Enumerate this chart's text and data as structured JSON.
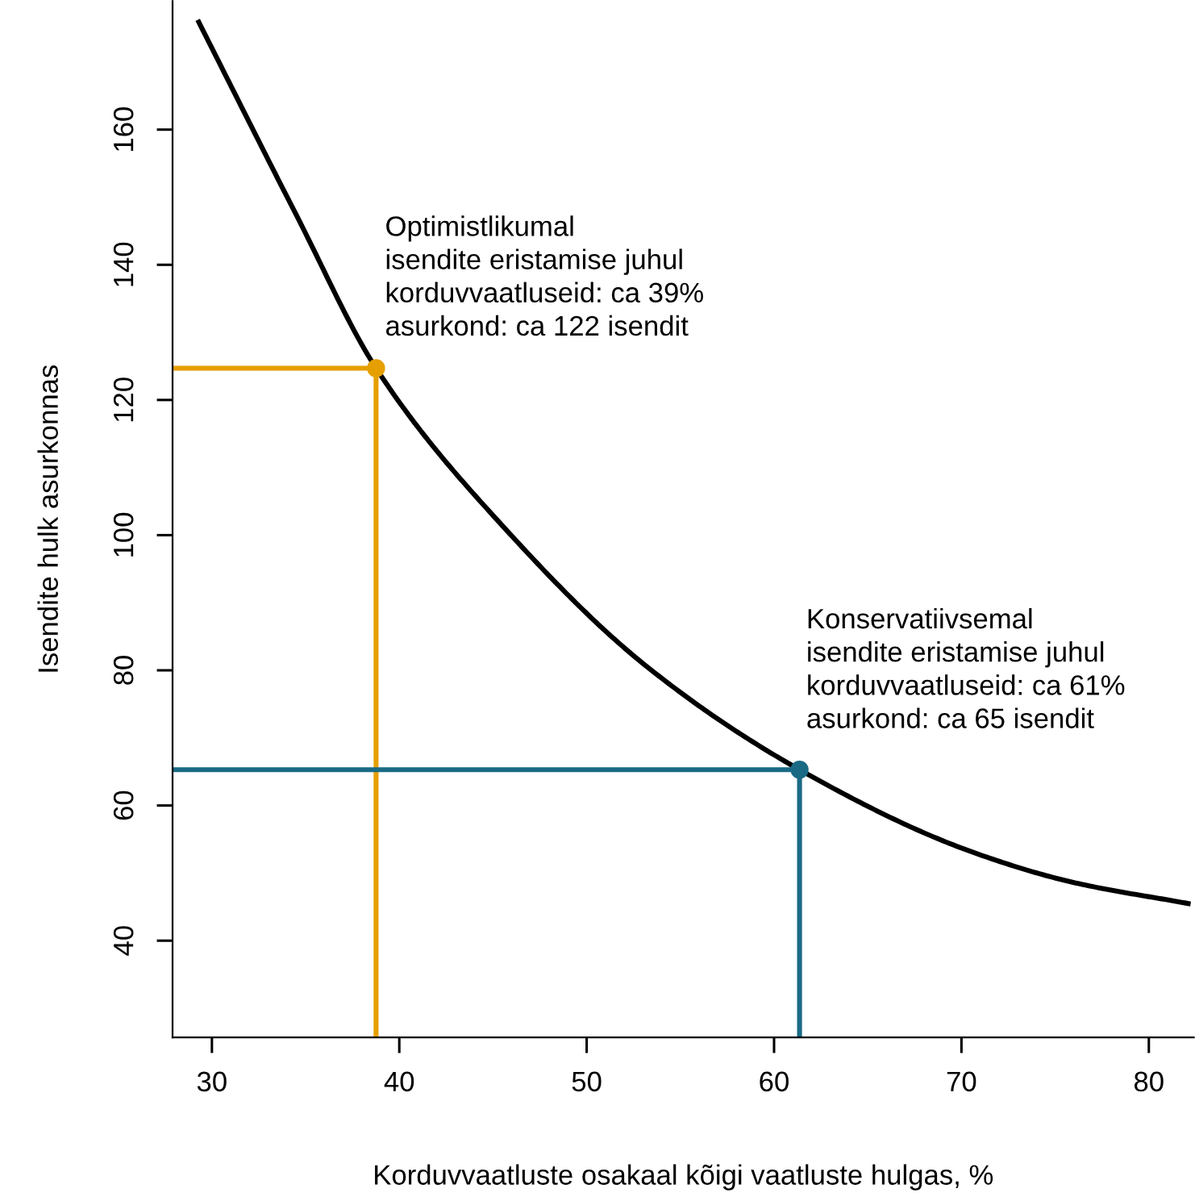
{
  "chart_data": {
    "type": "line",
    "xlabel": "Korduvvaatluste osakaal kõigi vaatluste hulgas, %",
    "ylabel": "Isendite hulk asurkonnas",
    "xlim": [
      27.9,
      82.4
    ],
    "ylim": [
      25.7,
      179
    ],
    "xticks": [
      30,
      40,
      50,
      60,
      70,
      80
    ],
    "yticks": [
      40,
      60,
      80,
      100,
      120,
      140,
      160
    ],
    "grid": false,
    "legend": false,
    "series": [
      {
        "color": "#000000",
        "marker": "none",
        "x": [
          29.3,
          34.5,
          38.76,
          45.6,
          53.1,
          61.36,
          70.3,
          76.0,
          82.1
        ],
        "values": [
          175.9,
          147.4,
          124.7,
          101.1,
          80.8,
          65.3,
          53.4,
          48.6,
          45.5
        ]
      },
      {
        "color": "#e69f00",
        "marker": "none",
        "x": [
          27.9,
          38.76,
          38.76
        ],
        "values": [
          124.7,
          124.7,
          25.7
        ]
      },
      {
        "type": "scatter",
        "color": "#e69f00",
        "marker": "circle",
        "x": [
          38.76
        ],
        "values": [
          124.7
        ]
      },
      {
        "color": "#1a6a85",
        "marker": "none",
        "x": [
          27.9,
          61.36,
          61.36
        ],
        "values": [
          65.3,
          65.3,
          25.7
        ]
      },
      {
        "type": "scatter",
        "color": "#1a6a85",
        "marker": "circle",
        "x": [
          61.36
        ],
        "values": [
          65.3
        ]
      }
    ],
    "annotations": [
      {
        "text": "Optimistlikumal\nisendite eristamise juhul\nkorduvvaatluseid: ca 39%\nasurkond: ca 122 isendit",
        "x": 38.76,
        "y": 124.7
      },
      {
        "text": "Konservatiivsemal\nisendite eristamise juhul\nkorduvvaatluseid: ca 61%\nasurkond: ca 65 isendit",
        "x": 61.36,
        "y": 65.3
      }
    ]
  }
}
